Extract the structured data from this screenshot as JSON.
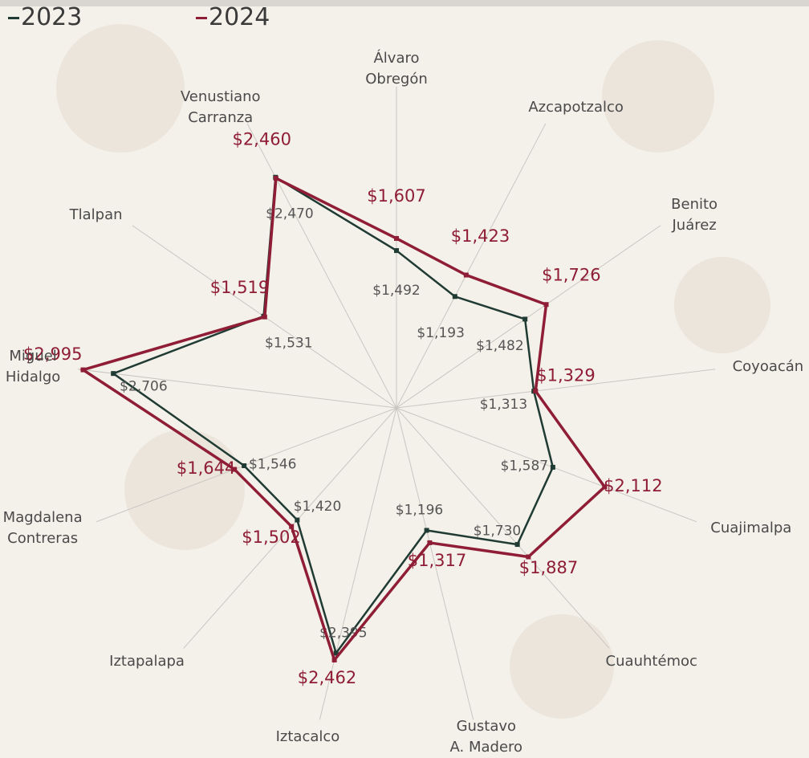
{
  "chart_data": {
    "type": "radar",
    "categories": [
      "Álvaro\nObregón",
      "Azcapotzalco",
      "Benito\nJuárez",
      "Coyoacán",
      "Cuajimalpa",
      "Cuauhtémoc",
      "Gustavo\nA. Madero",
      "Iztacalco",
      "Iztapalapa",
      "Magdalena\nContreras",
      "Miguel\nHidalgo",
      "Tlalpan",
      "Venustiano\nCarranza"
    ],
    "ylim": [
      0,
      3000
    ],
    "series": [
      {
        "name": "2023",
        "color": "#1f3b33",
        "values": [
          1492,
          1193,
          1482,
          1313,
          1587,
          1730,
          1196,
          2395,
          1420,
          1546,
          2706,
          1531,
          2470
        ],
        "value_labels": [
          "$1,492",
          "$1,193",
          "$1,482",
          "$1,313",
          "$1,587",
          "$1,730",
          "$1,196",
          "$2,395",
          "$1,420",
          "$1,546",
          "$2,706",
          "$1,531",
          "$2,470"
        ]
      },
      {
        "name": "2024",
        "color": "#8e1d35",
        "values": [
          1607,
          1423,
          1726,
          1329,
          2112,
          1887,
          1317,
          2462,
          1502,
          1644,
          2995,
          1519,
          2460
        ],
        "value_labels": [
          "$1,607",
          "$1,423",
          "$1,726",
          "$1,329",
          "$2,112",
          "$1,887",
          "$1,317",
          "$2,462",
          "$1,502",
          "$1,644",
          "$2,995",
          "$1,519",
          "$2,460"
        ]
      }
    ]
  }
}
